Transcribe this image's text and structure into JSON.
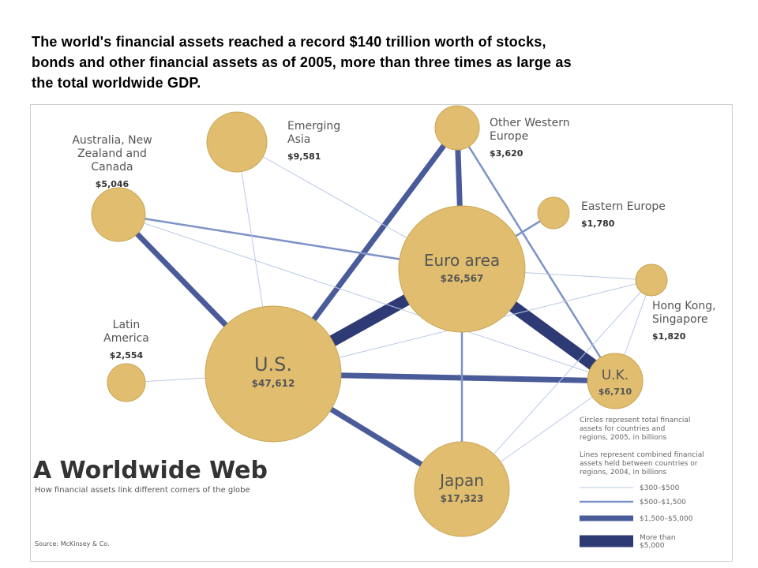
{
  "caption": {
    "line1": "The world's financial assets reached a record $140 trillion worth of stocks,",
    "line2": "bonds and other financial assets as of 2005, more than three times as large as",
    "line3": "the total worldwide GDP."
  },
  "colors": {
    "node_fill": "#e1be6f",
    "node_stroke": "#c9a454",
    "link_dark": "#2e3a73",
    "link_mid": "#4a5b9a",
    "link_light": "#7d93c7",
    "link_faint": "#b9c9e3",
    "label_text": "#555555"
  },
  "nodes": [
    {
      "id": "emerging-asia",
      "name_lines": [
        "Emerging",
        "Asia"
      ],
      "value": "$9,581"
    },
    {
      "id": "other-western-europe",
      "name_lines": [
        "Other Western",
        "Europe"
      ],
      "value": "$3,620"
    },
    {
      "id": "australia-nz-canada",
      "name_lines": [
        "Australia, New",
        "Zealand and",
        "Canada"
      ],
      "value": "$5,046"
    },
    {
      "id": "eastern-europe",
      "name_lines": [
        "Eastern Europe"
      ],
      "value": "$1,780"
    },
    {
      "id": "euro-area",
      "name_lines": [
        "Euro area"
      ],
      "value": "$26,567"
    },
    {
      "id": "hong-kong-singapore",
      "name_lines": [
        "Hong Kong,",
        "Singapore"
      ],
      "value": "$1,820"
    },
    {
      "id": "latin-america",
      "name_lines": [
        "Latin",
        "America"
      ],
      "value": "$2,554"
    },
    {
      "id": "us",
      "name_lines": [
        "U.S."
      ],
      "value": "$47,612"
    },
    {
      "id": "uk",
      "name_lines": [
        "U.K."
      ],
      "value": "$6,710"
    },
    {
      "id": "japan",
      "name_lines": [
        "Japan"
      ],
      "value": "$17,323"
    }
  ],
  "links": [
    {
      "from": "us",
      "to": "euro-area",
      "tier": "More than $5,000"
    },
    {
      "from": "euro-area",
      "to": "uk",
      "tier": "More than $5,000"
    },
    {
      "from": "us",
      "to": "uk",
      "tier": "$1,500–$5,000"
    },
    {
      "from": "us",
      "to": "japan",
      "tier": "$1,500–$5,000"
    },
    {
      "from": "us",
      "to": "australia-nz-canada",
      "tier": "$1,500–$5,000"
    },
    {
      "from": "us",
      "to": "other-western-europe",
      "tier": "$1,500–$5,000"
    },
    {
      "from": "euro-area",
      "to": "other-western-europe",
      "tier": "$1,500–$5,000"
    },
    {
      "from": "other-western-europe",
      "to": "uk",
      "tier": "$500–$1,500"
    },
    {
      "from": "australia-nz-canada",
      "to": "euro-area",
      "tier": "$500–$1,500"
    },
    {
      "from": "euro-area",
      "to": "eastern-europe",
      "tier": "$500–$1,500"
    },
    {
      "from": "euro-area",
      "to": "japan",
      "tier": "$500–$1,500"
    },
    {
      "from": "us",
      "to": "emerging-asia",
      "tier": "$300–$500"
    },
    {
      "from": "us",
      "to": "latin-america",
      "tier": "$300–$500"
    },
    {
      "from": "emerging-asia",
      "to": "euro-area",
      "tier": "$300–$500"
    },
    {
      "from": "australia-nz-canada",
      "to": "uk",
      "tier": "$300–$500"
    },
    {
      "from": "us",
      "to": "hong-kong-singapore",
      "tier": "$300–$500"
    },
    {
      "from": "euro-area",
      "to": "hong-kong-singapore",
      "tier": "$300–$500"
    },
    {
      "from": "hong-kong-singapore",
      "to": "uk",
      "tier": "$300–$500"
    },
    {
      "from": "japan",
      "to": "uk",
      "tier": "$300–$500"
    },
    {
      "from": "japan",
      "to": "hong-kong-singapore",
      "tier": "$300–$500"
    }
  ],
  "figure": {
    "title": "A Worldwide Web",
    "subtitle": "How financial assets link different corners of the globe",
    "source": "Source: McKinsey & Co."
  },
  "legend": {
    "circles_note": [
      "Circles represent total financial",
      "assets for countries and",
      "regions, 2005, in billions"
    ],
    "lines_note": [
      "Lines represent combined financial",
      "assets held between countries or",
      "regions, 2004, in billions"
    ],
    "tiers": [
      {
        "label_lines": [
          "$300–$500"
        ]
      },
      {
        "label_lines": [
          "$500–$1,500"
        ]
      },
      {
        "label_lines": [
          "$1,500–$5,000"
        ]
      },
      {
        "label_lines": [
          "More than",
          "$5,000"
        ]
      }
    ]
  }
}
